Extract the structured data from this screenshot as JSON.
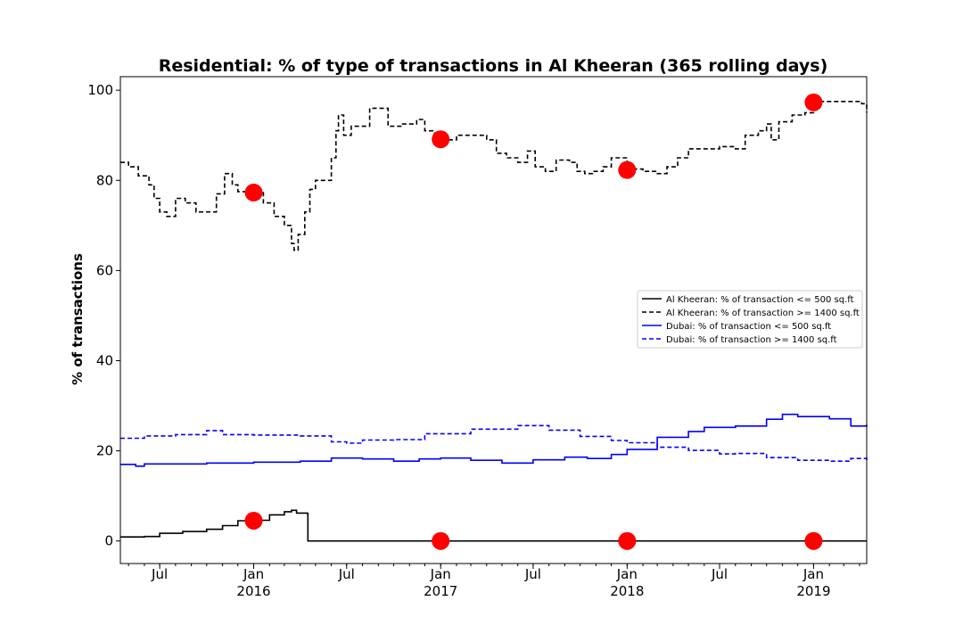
{
  "chart_data": {
    "type": "line",
    "title": "Residential: % of type of transactions in Al Kheeran (365 rolling days)",
    "xlabel": "",
    "ylabel": "% of transactions",
    "xlim": [
      "2015-04-15",
      "2019-04-15"
    ],
    "ylim": [
      -5,
      103
    ],
    "yticks": [
      0,
      20,
      40,
      60,
      80,
      100
    ],
    "xticks": [
      {
        "date": "2015-07-01",
        "label": "Jul",
        "sublabel": ""
      },
      {
        "date": "2016-01-01",
        "label": "Jan",
        "sublabel": "2016"
      },
      {
        "date": "2016-07-01",
        "label": "Jul",
        "sublabel": ""
      },
      {
        "date": "2017-01-01",
        "label": "Jan",
        "sublabel": "2017"
      },
      {
        "date": "2017-07-01",
        "label": "Jul",
        "sublabel": ""
      },
      {
        "date": "2018-01-01",
        "label": "Jan",
        "sublabel": "2018"
      },
      {
        "date": "2018-07-01",
        "label": "Jul",
        "sublabel": ""
      },
      {
        "date": "2019-01-01",
        "label": "Jan",
        "sublabel": "2019"
      }
    ],
    "grid": false,
    "legend_position": "center-right",
    "series": [
      {
        "name": "Al Kheeran: % of transaction <= 500 sq.ft",
        "color": "#000000",
        "style": "solid",
        "points": [
          [
            "2015-04-15",
            0.9
          ],
          [
            "2015-06-01",
            1.0
          ],
          [
            "2015-07-01",
            1.7
          ],
          [
            "2015-08-15",
            2.1
          ],
          [
            "2015-10-01",
            2.6
          ],
          [
            "2015-11-01",
            3.4
          ],
          [
            "2015-12-01",
            4.5
          ],
          [
            "2016-01-01",
            4.6
          ],
          [
            "2016-02-01",
            5.8
          ],
          [
            "2016-03-01",
            6.5
          ],
          [
            "2016-03-15",
            6.8
          ],
          [
            "2016-03-25",
            6.2
          ],
          [
            "2016-04-15",
            6.1
          ],
          [
            "2016-04-16",
            0
          ],
          [
            "2017-01-01",
            0
          ],
          [
            "2018-01-01",
            0
          ],
          [
            "2019-04-15",
            0
          ]
        ]
      },
      {
        "name": "Al Kheeran: % of transaction >= 1400 sq.ft",
        "color": "#000000",
        "style": "dashed",
        "points": [
          [
            "2015-04-15",
            84
          ],
          [
            "2015-05-01",
            83
          ],
          [
            "2015-05-20",
            81
          ],
          [
            "2015-06-10",
            79
          ],
          [
            "2015-06-20",
            76
          ],
          [
            "2015-07-01",
            73
          ],
          [
            "2015-07-15",
            72
          ],
          [
            "2015-08-01",
            76
          ],
          [
            "2015-08-20",
            75
          ],
          [
            "2015-09-10",
            73
          ],
          [
            "2015-10-01",
            73
          ],
          [
            "2015-10-20",
            77
          ],
          [
            "2015-11-05",
            81.5
          ],
          [
            "2015-11-20",
            79
          ],
          [
            "2015-12-01",
            77.5
          ],
          [
            "2016-01-01",
            77.5
          ],
          [
            "2016-01-20",
            75
          ],
          [
            "2016-02-10",
            72
          ],
          [
            "2016-03-01",
            70
          ],
          [
            "2016-03-15",
            66
          ],
          [
            "2016-03-20",
            64.5
          ],
          [
            "2016-03-28",
            68
          ],
          [
            "2016-04-10",
            73
          ],
          [
            "2016-04-20",
            78
          ],
          [
            "2016-05-01",
            80
          ],
          [
            "2016-05-25",
            80
          ],
          [
            "2016-06-01",
            85
          ],
          [
            "2016-06-10",
            91
          ],
          [
            "2016-06-15",
            94.5
          ],
          [
            "2016-06-25",
            90
          ],
          [
            "2016-07-10",
            92
          ],
          [
            "2016-08-10",
            92
          ],
          [
            "2016-08-15",
            96
          ],
          [
            "2016-09-15",
            96
          ],
          [
            "2016-09-20",
            92
          ],
          [
            "2016-10-15",
            92.5
          ],
          [
            "2016-11-15",
            93.5
          ],
          [
            "2016-12-01",
            91
          ],
          [
            "2016-12-20",
            89
          ],
          [
            "2017-01-01",
            89
          ],
          [
            "2017-02-01",
            90
          ],
          [
            "2017-03-01",
            90
          ],
          [
            "2017-04-01",
            89
          ],
          [
            "2017-04-20",
            86
          ],
          [
            "2017-05-10",
            85
          ],
          [
            "2017-06-01",
            84
          ],
          [
            "2017-06-20",
            86.5
          ],
          [
            "2017-07-05",
            83
          ],
          [
            "2017-07-25",
            82
          ],
          [
            "2017-08-15",
            84.5
          ],
          [
            "2017-09-10",
            84
          ],
          [
            "2017-09-25",
            82
          ],
          [
            "2017-10-10",
            81.5
          ],
          [
            "2017-10-25",
            82
          ],
          [
            "2017-11-15",
            83
          ],
          [
            "2017-12-01",
            85
          ],
          [
            "2018-01-01",
            82.5
          ],
          [
            "2018-02-01",
            82
          ],
          [
            "2018-03-01",
            81.5
          ],
          [
            "2018-03-20",
            83
          ],
          [
            "2018-04-10",
            85
          ],
          [
            "2018-05-01",
            87
          ],
          [
            "2018-06-01",
            87
          ],
          [
            "2018-07-01",
            87.5
          ],
          [
            "2018-08-01",
            87
          ],
          [
            "2018-08-20",
            90
          ],
          [
            "2018-09-15",
            91
          ],
          [
            "2018-10-01",
            92.5
          ],
          [
            "2018-10-10",
            89
          ],
          [
            "2018-10-25",
            93
          ],
          [
            "2018-11-20",
            94.5
          ],
          [
            "2018-12-15",
            95
          ],
          [
            "2019-01-01",
            97.5
          ],
          [
            "2019-03-01",
            97.5
          ],
          [
            "2019-04-05",
            97
          ],
          [
            "2019-04-15",
            95
          ]
        ]
      },
      {
        "name": "Dubai: % of transaction <= 500 sq.ft",
        "color": "#0000ff",
        "style": "solid",
        "points": [
          [
            "2015-04-15",
            17
          ],
          [
            "2015-05-15",
            16.6
          ],
          [
            "2015-06-01",
            17.1
          ],
          [
            "2015-08-01",
            17.1
          ],
          [
            "2015-10-01",
            17.3
          ],
          [
            "2016-01-01",
            17.5
          ],
          [
            "2016-04-01",
            17.7
          ],
          [
            "2016-06-01",
            18.4
          ],
          [
            "2016-08-01",
            18.2
          ],
          [
            "2016-10-01",
            17.7
          ],
          [
            "2016-11-20",
            18.2
          ],
          [
            "2017-01-01",
            18.4
          ],
          [
            "2017-03-01",
            17.9
          ],
          [
            "2017-05-01",
            17.3
          ],
          [
            "2017-07-01",
            18.0
          ],
          [
            "2017-09-01",
            18.6
          ],
          [
            "2017-10-15",
            18.3
          ],
          [
            "2017-12-01",
            19.2
          ],
          [
            "2018-01-01",
            20.3
          ],
          [
            "2018-03-01",
            23
          ],
          [
            "2018-05-01",
            24.3
          ],
          [
            "2018-06-01",
            25.2
          ],
          [
            "2018-08-01",
            25.5
          ],
          [
            "2018-10-01",
            27
          ],
          [
            "2018-11-01",
            28.1
          ],
          [
            "2018-12-01",
            27.6
          ],
          [
            "2019-02-01",
            27.1
          ],
          [
            "2019-03-15",
            25.5
          ],
          [
            "2019-04-15",
            25.8
          ]
        ]
      },
      {
        "name": "Dubai: % of transaction >= 1400 sq.ft",
        "color": "#0000ff",
        "style": "dashed",
        "points": [
          [
            "2015-04-15",
            22.8
          ],
          [
            "2015-06-01",
            23.3
          ],
          [
            "2015-08-01",
            23.6
          ],
          [
            "2015-10-01",
            24.5
          ],
          [
            "2015-11-01",
            23.6
          ],
          [
            "2016-01-01",
            23.5
          ],
          [
            "2016-04-01",
            23.3
          ],
          [
            "2016-06-01",
            22.0
          ],
          [
            "2016-07-01",
            21.7
          ],
          [
            "2016-08-01",
            22.4
          ],
          [
            "2016-10-01",
            22.5
          ],
          [
            "2016-12-01",
            23.8
          ],
          [
            "2017-03-01",
            24.8
          ],
          [
            "2017-06-01",
            25.6
          ],
          [
            "2017-08-01",
            24.6
          ],
          [
            "2017-10-01",
            23.2
          ],
          [
            "2017-12-01",
            22.3
          ],
          [
            "2018-01-01",
            21.8
          ],
          [
            "2018-03-01",
            20.8
          ],
          [
            "2018-05-01",
            20.1
          ],
          [
            "2018-07-01",
            19.3
          ],
          [
            "2018-08-01",
            19.4
          ],
          [
            "2018-10-01",
            18.5
          ],
          [
            "2018-12-01",
            17.9
          ],
          [
            "2019-02-01",
            17.7
          ],
          [
            "2019-03-15",
            18.3
          ],
          [
            "2019-04-15",
            17.9
          ]
        ]
      }
    ],
    "markers": {
      "color": "#ff0000",
      "points": [
        [
          "2016-01-01",
          77.3
        ],
        [
          "2017-01-01",
          89.1
        ],
        [
          "2018-01-01",
          82.3
        ],
        [
          "2019-01-01",
          97.3
        ],
        [
          "2016-01-01",
          4.5
        ],
        [
          "2017-01-01",
          0
        ],
        [
          "2018-01-01",
          0
        ],
        [
          "2019-01-01",
          0
        ]
      ]
    }
  }
}
